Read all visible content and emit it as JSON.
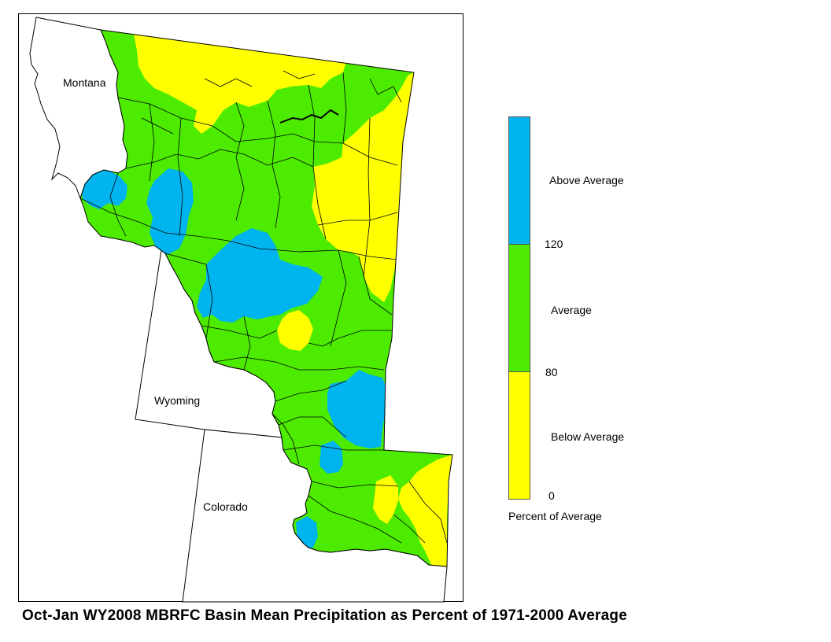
{
  "map": {
    "state_labels": {
      "montana": "Montana",
      "wyoming": "Wyoming",
      "colorado": "Colorado"
    }
  },
  "legend": {
    "categories": [
      {
        "label": "Above Average",
        "range_percent": [
          120,
          null
        ],
        "color": "#00B4F0"
      },
      {
        "label": "Average",
        "range_percent": [
          80,
          120
        ],
        "color": "#4CEB00"
      },
      {
        "label": "Below Average",
        "range_percent": [
          0,
          80
        ],
        "color": "#FFFF00"
      }
    ],
    "tick_labels": [
      "120",
      "80",
      "0"
    ],
    "axis_title": "Percent of Average"
  },
  "caption": "Oct-Jan WY2008 MBRFC Basin Mean Precipitation as Percent of 1971-2000 Average",
  "colors": {
    "above": "#00B4F0",
    "average": "#4CEB00",
    "below": "#FFFF00",
    "boundary": "#000000",
    "background": "#FFFFFF"
  }
}
